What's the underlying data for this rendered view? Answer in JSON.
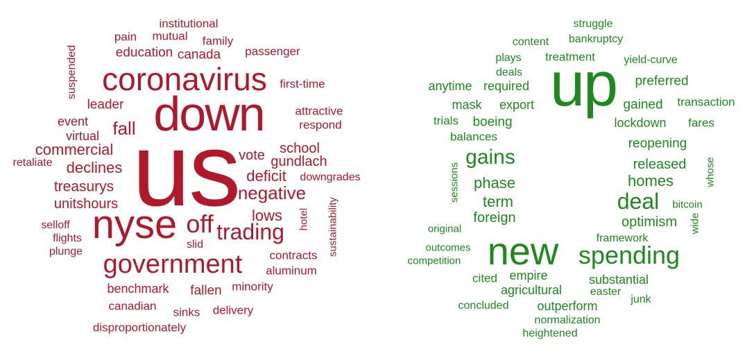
{
  "colors": {
    "negative": "#b2182b",
    "positive": "#1e8a1e"
  },
  "negative_cloud": {
    "words": [
      "us",
      "down",
      "coronavirus",
      "nyse",
      "government",
      "off",
      "trading",
      "negative",
      "fall",
      "deficit",
      "commercial",
      "declines",
      "treasurys",
      "vote",
      "lows",
      "unitshours",
      "school",
      "gundlach",
      "education",
      "canada",
      "leader",
      "event",
      "virtual",
      "family",
      "institutional",
      "pain",
      "mutual",
      "passenger",
      "first-time",
      "attractive",
      "respond",
      "suspended",
      "retaliate",
      "downgrades",
      "sustainability",
      "hotel",
      "selloff",
      "flights",
      "plunge",
      "slid",
      "contracts",
      "aluminum",
      "benchmark",
      "fallen",
      "minority",
      "canadian",
      "sinks",
      "delivery",
      "disproportionately"
    ]
  },
  "positive_cloud": {
    "words": [
      "up",
      "+",
      "new",
      "spending",
      "deal",
      "gains",
      "phase",
      "term",
      "foreign",
      "homes",
      "optimism",
      "released",
      "reopening",
      "lockdown",
      "fares",
      "gained",
      "transaction",
      "preferred",
      "yield-curve",
      "treatment",
      "bankruptcy",
      "struggle",
      "content",
      "plays",
      "deals",
      "required",
      "anytime",
      "mask",
      "export",
      "trials",
      "boeing",
      "balances",
      "sessions",
      "bitcoin",
      "wide",
      "whose",
      "framework",
      "original",
      "outcomes",
      "competition",
      "cited",
      "empire",
      "agricultural",
      "substantial",
      "easter",
      "junk",
      "concluded",
      "outperform",
      "normalization",
      "heightened"
    ]
  }
}
